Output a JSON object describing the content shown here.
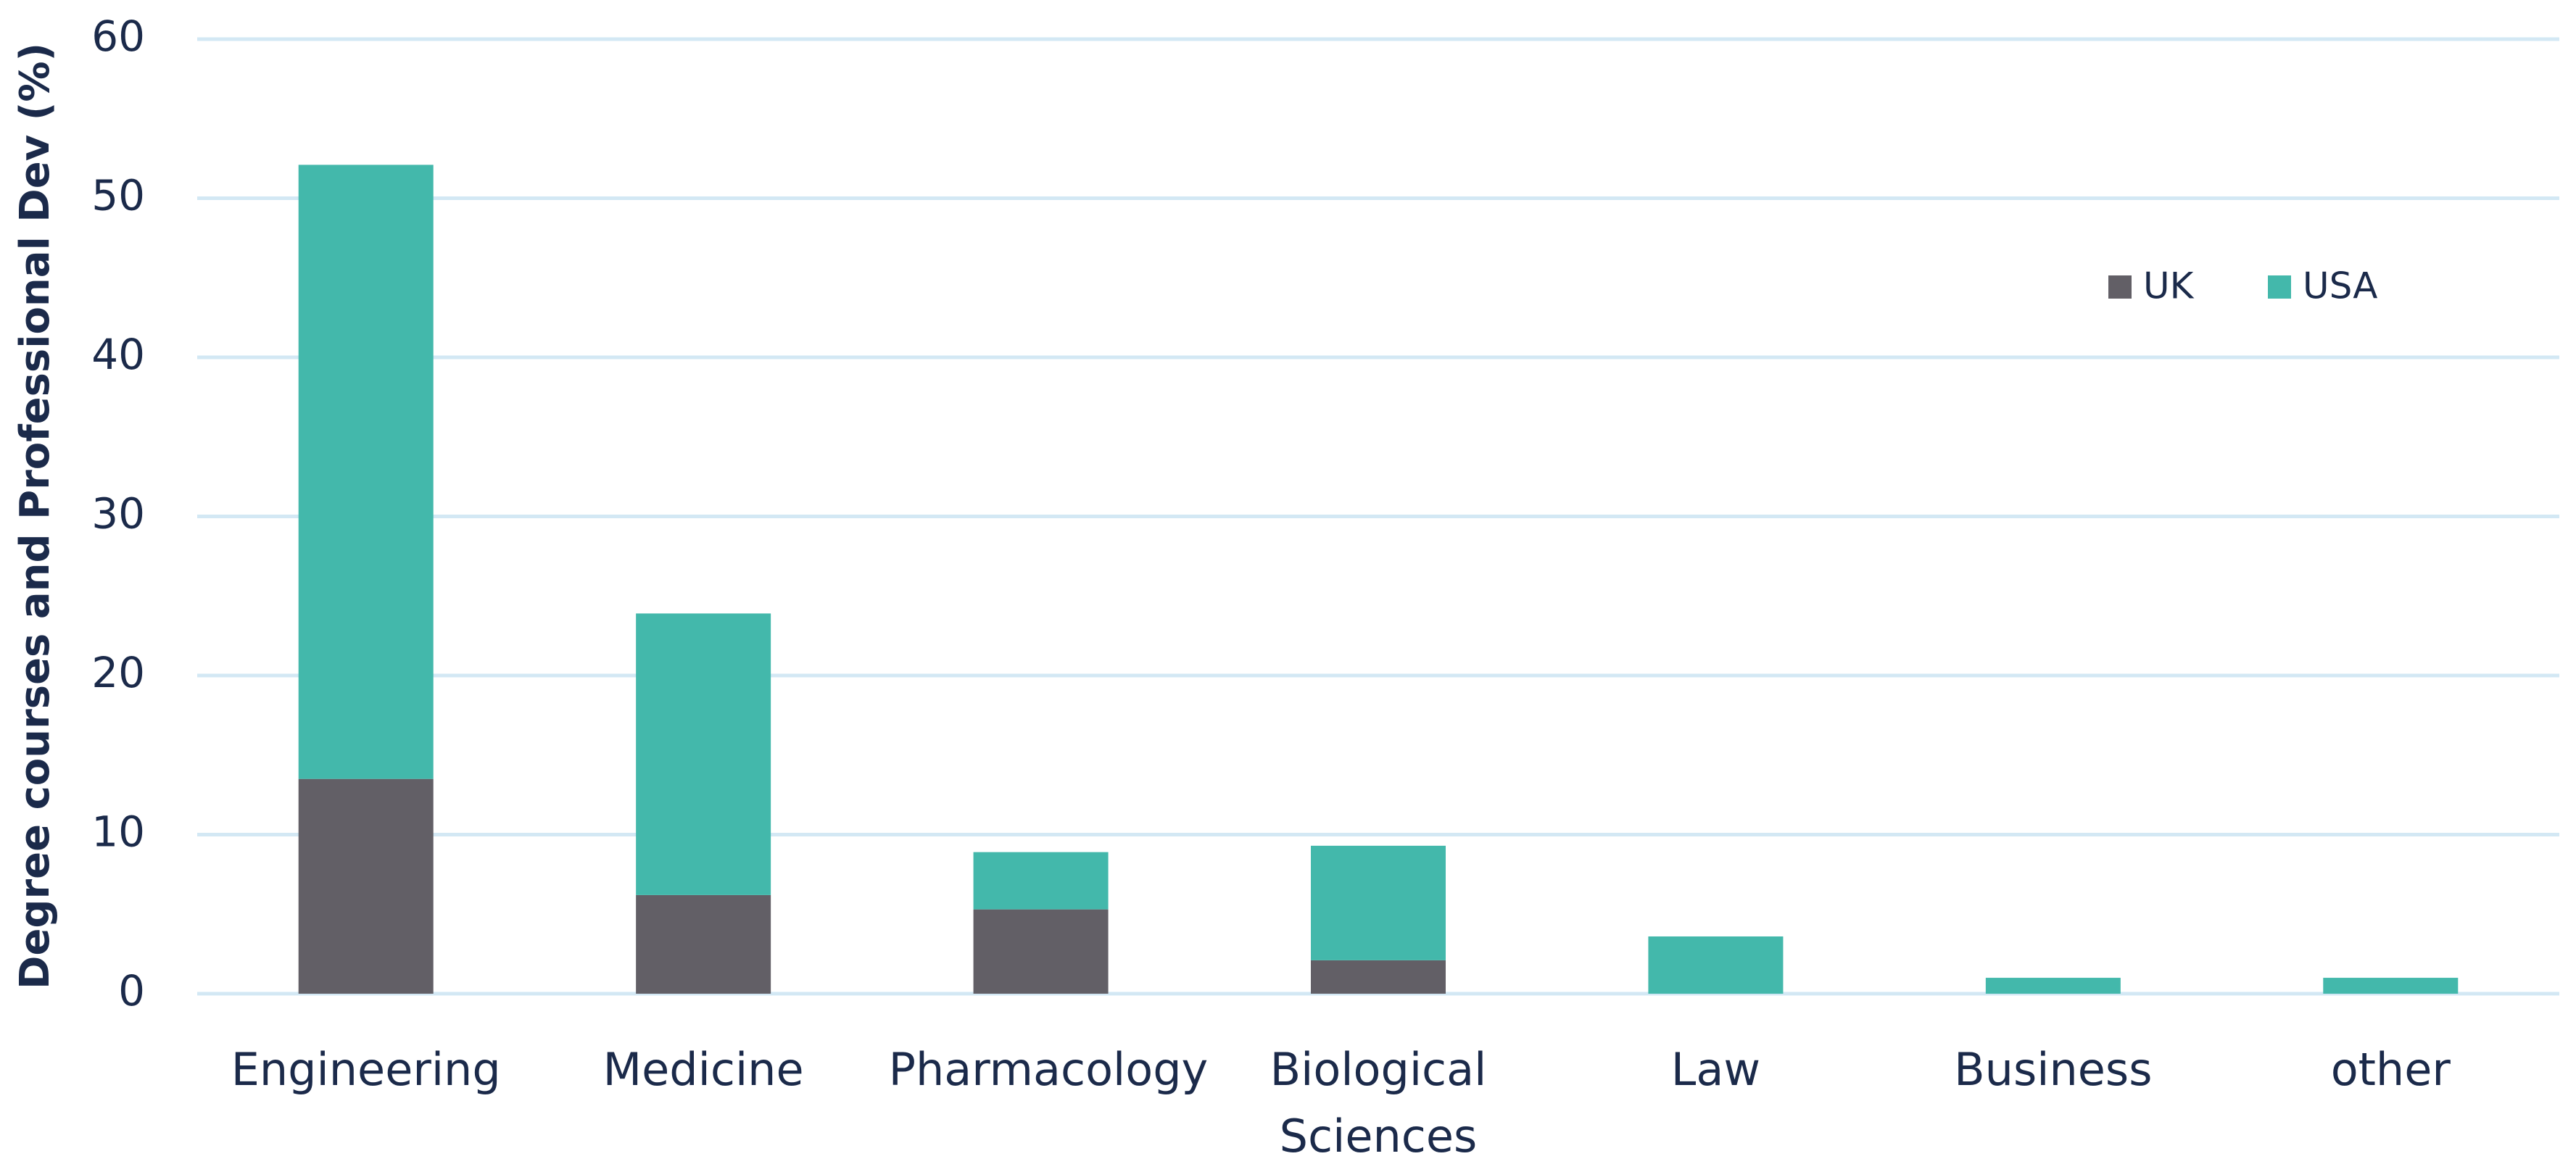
{
  "chart_data": {
    "type": "stacked_bar",
    "y_label": "Degree courses and Professional Dev (%)",
    "categories": [
      "Engineering",
      "Medicine",
      "Pharmacology",
      "Biological Sciences",
      "Law",
      "Business",
      "other"
    ],
    "series": [
      {
        "name": "UK",
        "color": "#625f66",
        "values": [
          13.5,
          6.2,
          5.3,
          2.1,
          0,
          0,
          0
        ]
      },
      {
        "name": "USA",
        "color": "#43b8ab",
        "values": [
          38.6,
          17.7,
          3.6,
          7.2,
          3.6,
          1.0,
          1.0
        ]
      }
    ],
    "ylim": [
      0,
      60
    ],
    "yticks": [
      0,
      10,
      20,
      30,
      40,
      50,
      60
    ],
    "grid": true
  }
}
